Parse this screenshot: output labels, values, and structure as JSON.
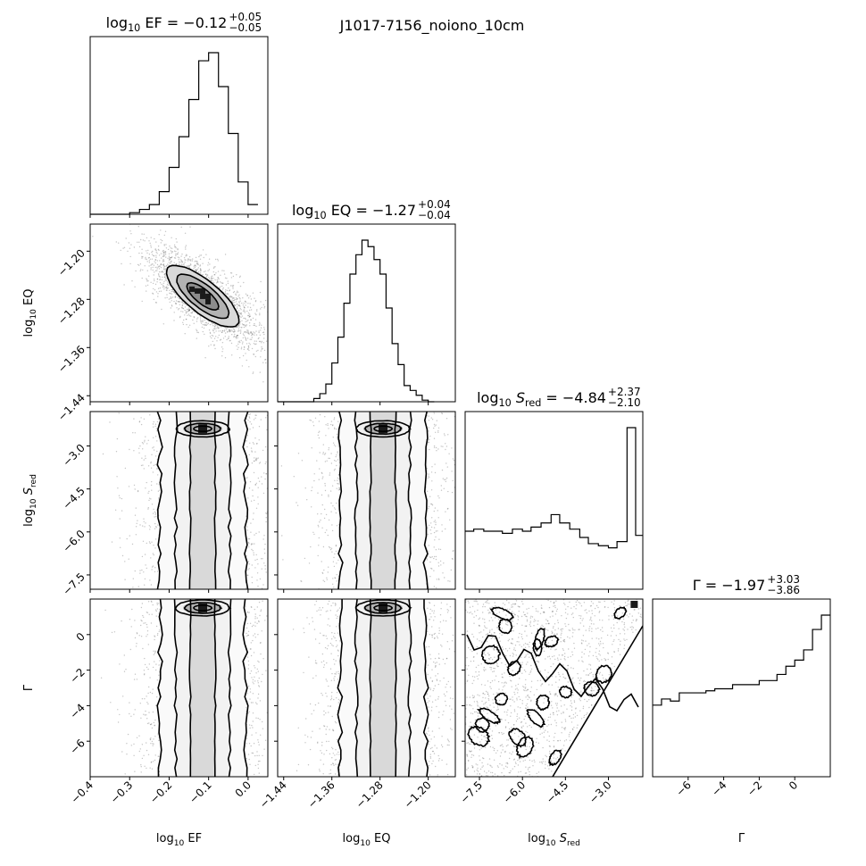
{
  "suptitle": "J1017-7156_noiono_10cm",
  "chart_data": {
    "type": "corner",
    "parameters": [
      {
        "name": "log10_EF",
        "axis_label": "log₁₀ EF",
        "range": [
          -0.4,
          0.05
        ],
        "ticks": [
          -0.4,
          -0.3,
          -0.2,
          -0.1,
          0.0
        ],
        "tick_labels": [
          "−0.4",
          "−0.3",
          "−0.2",
          "−0.1",
          "0.0"
        ],
        "title": {
          "lhs": "log₁₀ EF = −0.12",
          "upper": "+0.05",
          "lower": "−0.05"
        },
        "hist_edges": [
          -0.4,
          -0.3,
          -0.275,
          -0.25,
          -0.225,
          -0.2,
          -0.175,
          -0.15,
          -0.125,
          -0.1,
          -0.075,
          -0.05,
          -0.025,
          0.0,
          0.025
        ],
        "hist_counts": [
          0.0,
          0.01,
          0.03,
          0.06,
          0.14,
          0.29,
          0.48,
          0.71,
          0.95,
          1.0,
          0.79,
          0.5,
          0.2,
          0.06
        ]
      },
      {
        "name": "log10_EQ",
        "axis_label": "log₁₀ EQ",
        "range": [
          -1.45,
          -1.155
        ],
        "ticks": [
          -1.44,
          -1.36,
          -1.28,
          -1.2
        ],
        "tick_labels": [
          "−1.44",
          "−1.36",
          "−1.28",
          "−1.20"
        ],
        "title": {
          "lhs": "log₁₀ EQ = −1.27",
          "upper": "+0.04",
          "lower": "−0.04"
        },
        "hist_edges": [
          -1.45,
          -1.39,
          -1.38,
          -1.37,
          -1.36,
          -1.35,
          -1.34,
          -1.33,
          -1.32,
          -1.31,
          -1.3,
          -1.29,
          -1.28,
          -1.27,
          -1.26,
          -1.25,
          -1.24,
          -1.23,
          -1.22,
          -1.21,
          -1.2,
          -1.19
        ],
        "hist_counts": [
          0.0,
          0.02,
          0.05,
          0.11,
          0.24,
          0.4,
          0.61,
          0.79,
          0.91,
          1.0,
          0.96,
          0.88,
          0.79,
          0.58,
          0.36,
          0.23,
          0.1,
          0.07,
          0.04,
          0.01,
          0.0
        ]
      },
      {
        "name": "log10_S_red",
        "axis_label": "log₁₀ S_red",
        "range": [
          -8.0,
          -1.8
        ],
        "ticks": [
          -7.5,
          -6.0,
          -4.5,
          -3.0
        ],
        "tick_labels": [
          "−7.5",
          "−6.0",
          "−4.5",
          "−3.0"
        ],
        "title": {
          "lhs": "log₁₀ S_red = −4.84",
          "upper": "+2.37",
          "lower": "−2.10"
        },
        "hist_edges": [
          -8.0,
          -7.7,
          -7.35,
          -7.0,
          -6.7,
          -6.35,
          -6.0,
          -5.7,
          -5.35,
          -5.0,
          -4.7,
          -4.35,
          -4.0,
          -3.7,
          -3.35,
          -3.0,
          -2.7,
          -2.35,
          -2.05,
          -1.8
        ],
        "hist_counts": [
          0.28,
          0.29,
          0.28,
          0.28,
          0.27,
          0.29,
          0.28,
          0.3,
          0.32,
          0.36,
          0.32,
          0.29,
          0.25,
          0.22,
          0.21,
          0.2,
          0.23,
          0.78,
          0.26
        ]
      },
      {
        "name": "Gamma",
        "axis_label": "Γ",
        "range": [
          -8.0,
          2.0
        ],
        "ticks": [
          -6,
          -4,
          -2,
          0
        ],
        "tick_labels": [
          "−6",
          "−4",
          "−2",
          "0"
        ],
        "title": {
          "lhs": "Γ = −1.97",
          "upper": "+3.03",
          "lower": "−3.86"
        },
        "hist_edges": [
          -8.0,
          -7.5,
          -7.0,
          -6.5,
          -6.0,
          -5.5,
          -5.0,
          -4.5,
          -4.0,
          -3.5,
          -3.0,
          -2.5,
          -2.0,
          -1.5,
          -1.0,
          -0.5,
          0.0,
          0.5,
          1.0,
          1.5,
          2.0
        ],
        "hist_counts": [
          0.35,
          0.38,
          0.37,
          0.41,
          0.41,
          0.41,
          0.42,
          0.43,
          0.43,
          0.45,
          0.45,
          0.45,
          0.47,
          0.47,
          0.5,
          0.54,
          0.57,
          0.62,
          0.72,
          0.79
        ]
      }
    ],
    "pairs": [
      {
        "x": "log10_EF",
        "y": "log10_EQ",
        "shape": "correlated_ellipse",
        "peak": [
          -0.115,
          -1.275
        ],
        "correlation": -0.75
      },
      {
        "x": "log10_EF",
        "y": "log10_S_red",
        "shape": "vertical_band_peak_top",
        "peak": [
          -0.115,
          -2.4
        ]
      },
      {
        "x": "log10_EQ",
        "y": "log10_S_red",
        "shape": "vertical_band_peak_top",
        "peak": [
          -1.275,
          -2.4
        ]
      },
      {
        "x": "log10_EF",
        "y": "Gamma",
        "shape": "vertical_band_peak_top",
        "peak": [
          -0.115,
          1.5
        ]
      },
      {
        "x": "log10_EQ",
        "y": "Gamma",
        "shape": "vertical_band_peak_top",
        "peak": [
          -1.275,
          1.5
        ]
      },
      {
        "x": "log10_S_red",
        "y": "Gamma",
        "shape": "diagonal_boundary",
        "peak": [
          -2.1,
          1.7
        ]
      }
    ]
  }
}
